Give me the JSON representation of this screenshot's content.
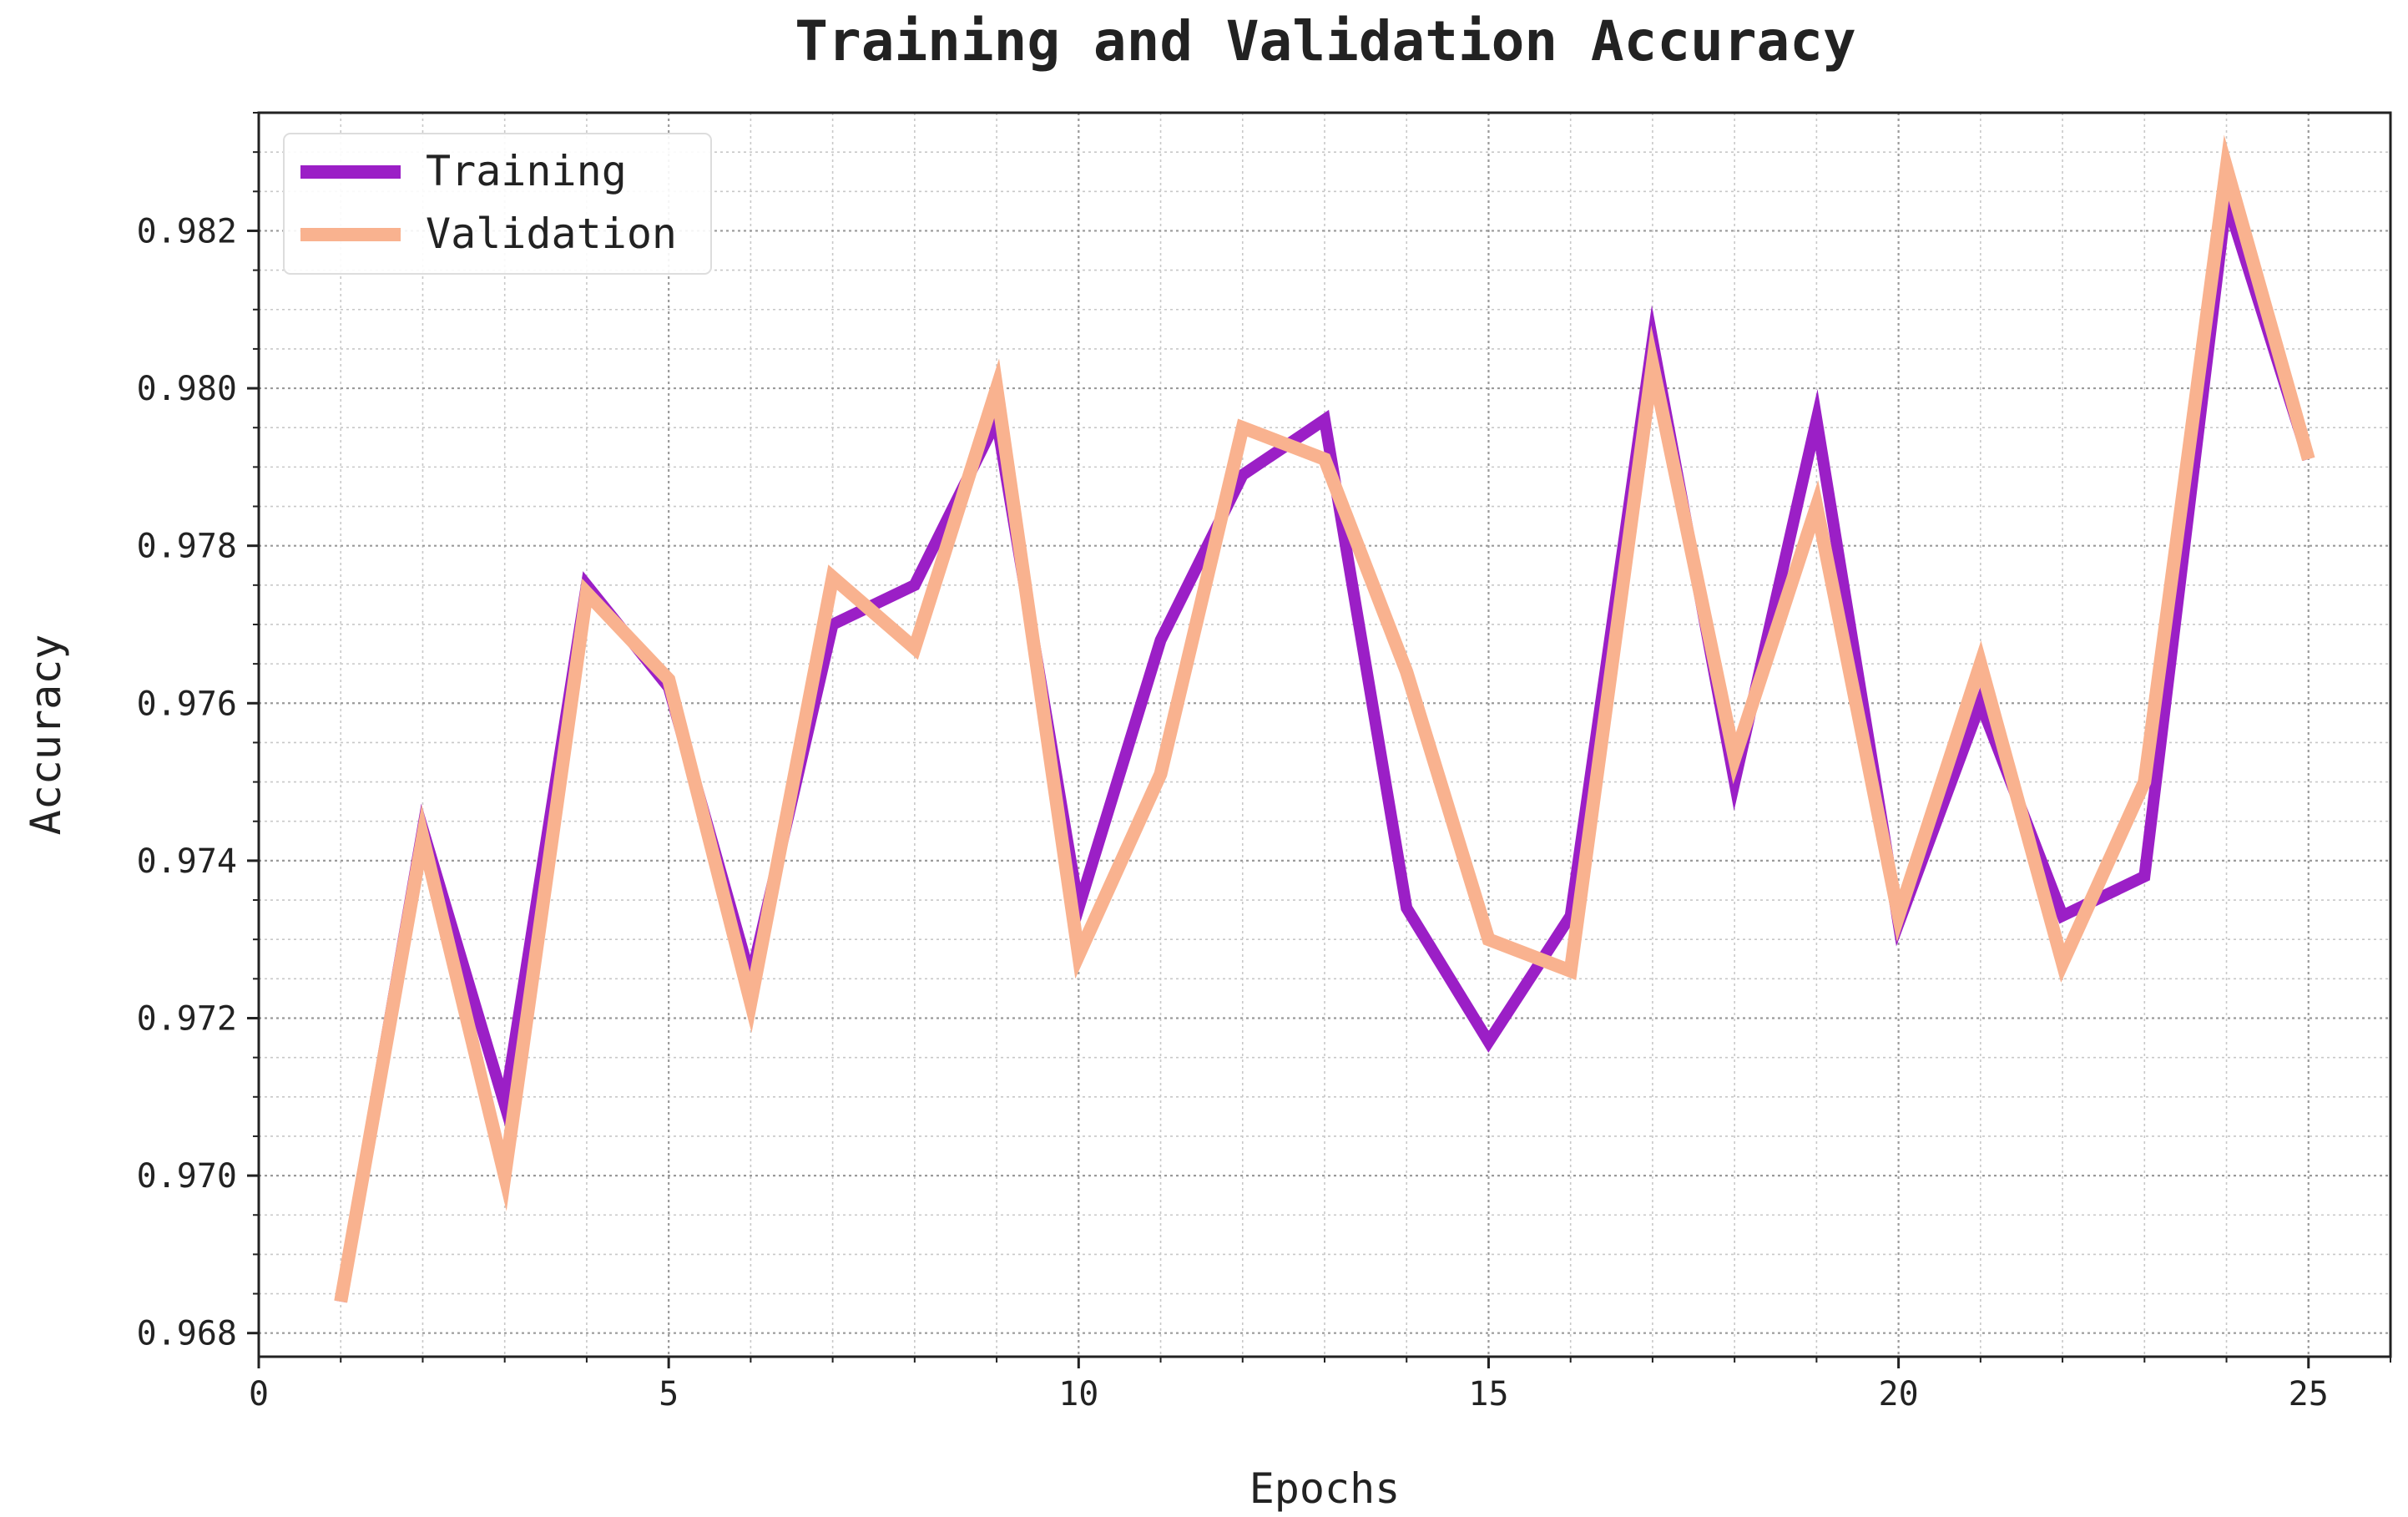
{
  "chart_data": {
    "type": "line",
    "title": "Training and Validation Accuracy",
    "xlabel": "Epochs",
    "ylabel": "Accuracy",
    "xlim": [
      0,
      26
    ],
    "ylim": [
      0.9677,
      0.9835
    ],
    "xticks": [
      0,
      5,
      10,
      15,
      20,
      25
    ],
    "xtick_labels": [
      "0",
      "5",
      "10",
      "15",
      "20",
      "25"
    ],
    "yticks": [
      0.968,
      0.97,
      0.972,
      0.974,
      0.976,
      0.978,
      0.98,
      0.982
    ],
    "ytick_labels": [
      "0.968",
      "0.970",
      "0.972",
      "0.974",
      "0.976",
      "0.978",
      "0.980",
      "0.982"
    ],
    "grid": true,
    "legend_position": "top-left",
    "x": [
      1,
      2,
      3,
      4,
      5,
      6,
      7,
      8,
      9,
      10,
      11,
      12,
      13,
      14,
      15,
      16,
      17,
      18,
      19,
      20,
      21,
      22,
      23,
      24,
      25
    ],
    "series": [
      {
        "name": "Training",
        "color": "#9b1fc6",
        "values": [
          0.9684,
          0.9744,
          0.9709,
          0.9775,
          0.9762,
          0.9725,
          0.977,
          0.9775,
          0.9796,
          0.9734,
          0.9768,
          0.9789,
          0.9796,
          0.9734,
          0.9717,
          0.9733,
          0.9806,
          0.975,
          0.9796,
          0.9732,
          0.976,
          0.9733,
          0.9738,
          0.9824,
          0.9791
        ]
      },
      {
        "name": "Validation",
        "color": "#f9b28f",
        "values": [
          0.9684,
          0.9743,
          0.97,
          0.9774,
          0.9763,
          0.9722,
          0.9776,
          0.9767,
          0.98,
          0.9728,
          0.9751,
          0.9795,
          0.9791,
          0.9764,
          0.973,
          0.9726,
          0.9803,
          0.9753,
          0.9785,
          0.9733,
          0.9765,
          0.9727,
          0.975,
          0.9828,
          0.9791
        ]
      }
    ]
  }
}
